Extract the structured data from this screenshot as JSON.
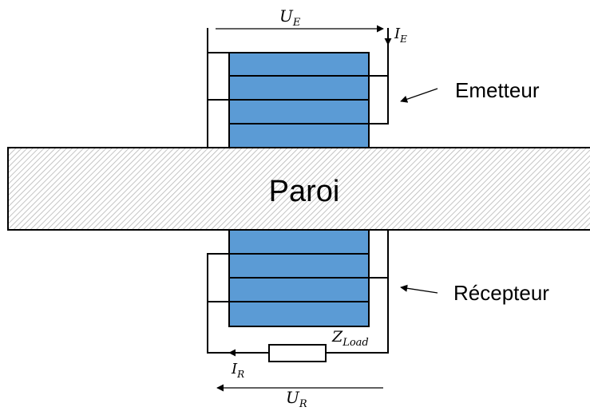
{
  "wall": {
    "label": "Paroi"
  },
  "emitter": {
    "label": "Emetteur",
    "voltage": {
      "symbol": "U",
      "subscript": "E"
    },
    "current": {
      "symbol": "I",
      "subscript": "E"
    }
  },
  "receiver": {
    "label": "Récepteur",
    "voltage": {
      "symbol": "U",
      "subscript": "R"
    },
    "current": {
      "symbol": "I",
      "subscript": "R"
    },
    "load": {
      "symbol": "Z",
      "subscript": "Load"
    }
  },
  "colors": {
    "layer_fill": "#5b9bd5",
    "layer_stroke": "#000000",
    "wall_fill": "#ffffff",
    "wall_hatch": "#b5b5b5",
    "wire": "#000000"
  }
}
